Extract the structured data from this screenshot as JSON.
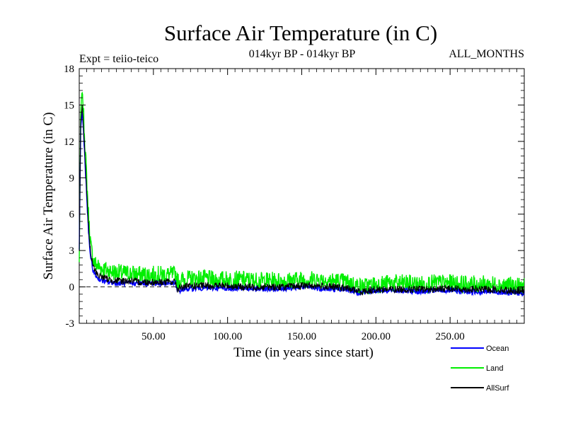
{
  "chart_data": {
    "type": "line",
    "title": "Surface Air Temperature (in C)",
    "subtitle": "014kyr BP - 014kyr BP",
    "left_note": "Expt = teiio-teico",
    "right_note": "ALL_MONTHS",
    "xlabel": "Time (in years since start)",
    "ylabel": "Surface Air Temperature (in C)",
    "xlim": [
      0,
      300
    ],
    "ylim": [
      -3,
      18
    ],
    "xticks": [
      50,
      100,
      150,
      200,
      250
    ],
    "xtick_labels": [
      "50.00",
      "100.00",
      "150.00",
      "200.00",
      "250.00"
    ],
    "yticks": [
      -3,
      0,
      3,
      6,
      9,
      12,
      15,
      18
    ],
    "ytick_labels": [
      "-3",
      "0",
      "3",
      "6",
      "9",
      "12",
      "15",
      "18"
    ],
    "reference_line": 0,
    "series": [
      {
        "name": "Land",
        "color": "#00ee00",
        "x": [
          0,
          1,
          2,
          3,
          4,
          5,
          6,
          7,
          8,
          9,
          10,
          12,
          14,
          16,
          18,
          20,
          25,
          30,
          35,
          40,
          45,
          50,
          55,
          60,
          65,
          66,
          70,
          80,
          90,
          100,
          110,
          120,
          130,
          140,
          150,
          160,
          170,
          180,
          190,
          200,
          210,
          220,
          230,
          240,
          250,
          260,
          270,
          280,
          290,
          300
        ],
        "values": [
          2.0,
          14.5,
          16.2,
          14.0,
          11.5,
          9.0,
          6.5,
          4.5,
          3.2,
          2.5,
          2.0,
          1.8,
          1.6,
          1.5,
          1.4,
          1.3,
          1.2,
          1.1,
          1.1,
          1.0,
          1.0,
          1.0,
          1.0,
          1.0,
          1.0,
          0.5,
          0.6,
          0.7,
          0.6,
          0.6,
          0.6,
          0.5,
          0.5,
          0.5,
          0.6,
          0.6,
          0.5,
          0.4,
          0.0,
          0.2,
          0.3,
          0.3,
          0.2,
          0.3,
          0.3,
          0.2,
          0.2,
          0.2,
          0.1,
          0.0
        ]
      },
      {
        "name": "Ocean",
        "color": "#0000ff",
        "x": [
          0,
          1,
          2,
          3,
          4,
          5,
          6,
          7,
          8,
          9,
          10,
          12,
          14,
          16,
          18,
          20,
          25,
          30,
          35,
          40,
          45,
          50,
          55,
          60,
          65,
          66,
          70,
          80,
          90,
          100,
          110,
          120,
          130,
          140,
          150,
          160,
          170,
          180,
          190,
          200,
          210,
          220,
          230,
          240,
          250,
          260,
          270,
          280,
          290,
          300
        ],
        "values": [
          3.0,
          13.0,
          14.5,
          12.5,
          10.0,
          7.5,
          5.0,
          3.2,
          2.2,
          1.5,
          1.1,
          0.8,
          0.6,
          0.5,
          0.4,
          0.4,
          0.3,
          0.3,
          0.3,
          0.3,
          0.3,
          0.3,
          0.3,
          0.3,
          0.3,
          -0.4,
          -0.2,
          -0.1,
          -0.1,
          -0.1,
          -0.1,
          -0.2,
          -0.2,
          -0.1,
          0.0,
          -0.1,
          -0.2,
          -0.2,
          -0.5,
          -0.3,
          -0.3,
          -0.3,
          -0.4,
          -0.3,
          -0.3,
          -0.4,
          -0.4,
          -0.4,
          -0.5,
          -0.5
        ]
      },
      {
        "name": "AllSurf",
        "color": "#000000",
        "x": [
          0,
          1,
          2,
          3,
          4,
          5,
          6,
          7,
          8,
          9,
          10,
          12,
          14,
          16,
          18,
          20,
          25,
          30,
          35,
          40,
          45,
          50,
          55,
          60,
          65,
          66,
          70,
          80,
          90,
          100,
          110,
          120,
          130,
          140,
          150,
          160,
          170,
          180,
          190,
          200,
          210,
          220,
          230,
          240,
          250,
          260,
          270,
          280,
          290,
          300
        ],
        "values": [
          3.0,
          13.5,
          15.0,
          13.0,
          10.5,
          8.0,
          5.5,
          3.6,
          2.6,
          1.9,
          1.5,
          1.1,
          0.9,
          0.8,
          0.7,
          0.6,
          0.5,
          0.5,
          0.5,
          0.4,
          0.4,
          0.4,
          0.4,
          0.4,
          0.4,
          -0.2,
          0.0,
          0.1,
          0.1,
          0.1,
          0.0,
          0.0,
          0.0,
          0.0,
          0.1,
          0.1,
          0.0,
          -0.1,
          -0.4,
          -0.2,
          -0.2,
          -0.2,
          -0.2,
          -0.2,
          -0.1,
          -0.2,
          -0.2,
          -0.2,
          -0.3,
          -0.3
        ]
      }
    ],
    "legend": [
      "Ocean",
      "Land",
      "AllSurf"
    ]
  }
}
